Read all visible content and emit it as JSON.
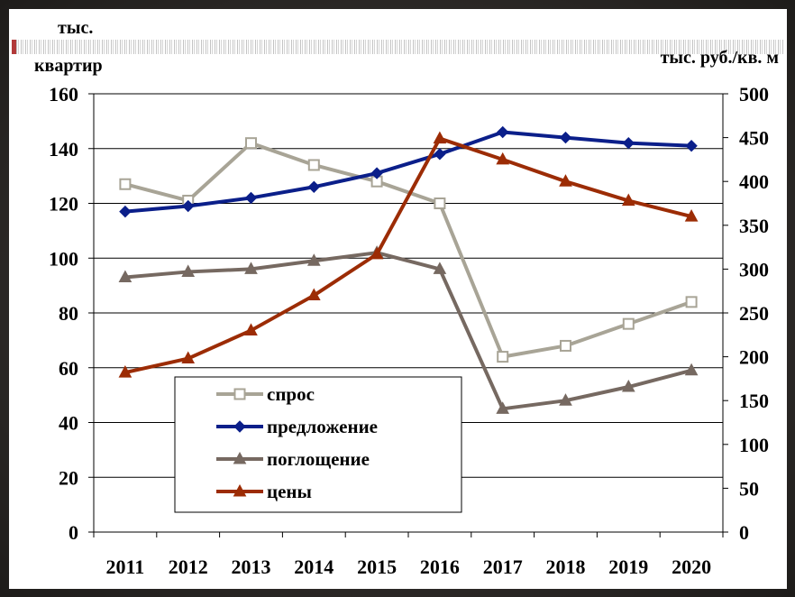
{
  "chart_data": {
    "type": "line",
    "categories": [
      "2011",
      "2012",
      "2013",
      "2014",
      "2015",
      "2016",
      "2017",
      "2018",
      "2019",
      "2020"
    ],
    "ylabel_left": "тыс. квартир",
    "ylabel_left_line1": "тыс.",
    "ylabel_left_line2": "квартир",
    "ylabel_right": "тыс. руб./кв. м",
    "ylim_left": [
      0,
      160
    ],
    "ylim_right": [
      0,
      500
    ],
    "yticks_left": [
      "0",
      "20",
      "40",
      "60",
      "80",
      "100",
      "120",
      "140",
      "160"
    ],
    "yticks_right": [
      "0",
      "50",
      "100",
      "150",
      "200",
      "250",
      "300",
      "350",
      "400",
      "450",
      "500"
    ],
    "grid": true,
    "legend_position": "bottom-left",
    "series": [
      {
        "name": "спрос",
        "axis": "left",
        "color": "#a8a496",
        "marker": "square-open",
        "values": [
          127,
          121,
          142,
          134,
          128,
          120,
          64,
          68,
          76,
          84
        ]
      },
      {
        "name": "предложение",
        "axis": "left",
        "color": "#0b1f8a",
        "marker": "diamond",
        "values": [
          117,
          119,
          122,
          126,
          131,
          138,
          146,
          144,
          142,
          141
        ]
      },
      {
        "name": "поглощение",
        "axis": "left",
        "color": "#766961",
        "marker": "triangle",
        "values": [
          93,
          95,
          96,
          99,
          102,
          96,
          45,
          48,
          53,
          59
        ]
      },
      {
        "name": "цены",
        "axis": "right",
        "color": "#9c2c05",
        "marker": "triangle",
        "values": [
          182,
          198,
          230,
          270,
          317,
          449,
          425,
          400,
          378,
          360
        ]
      }
    ]
  }
}
